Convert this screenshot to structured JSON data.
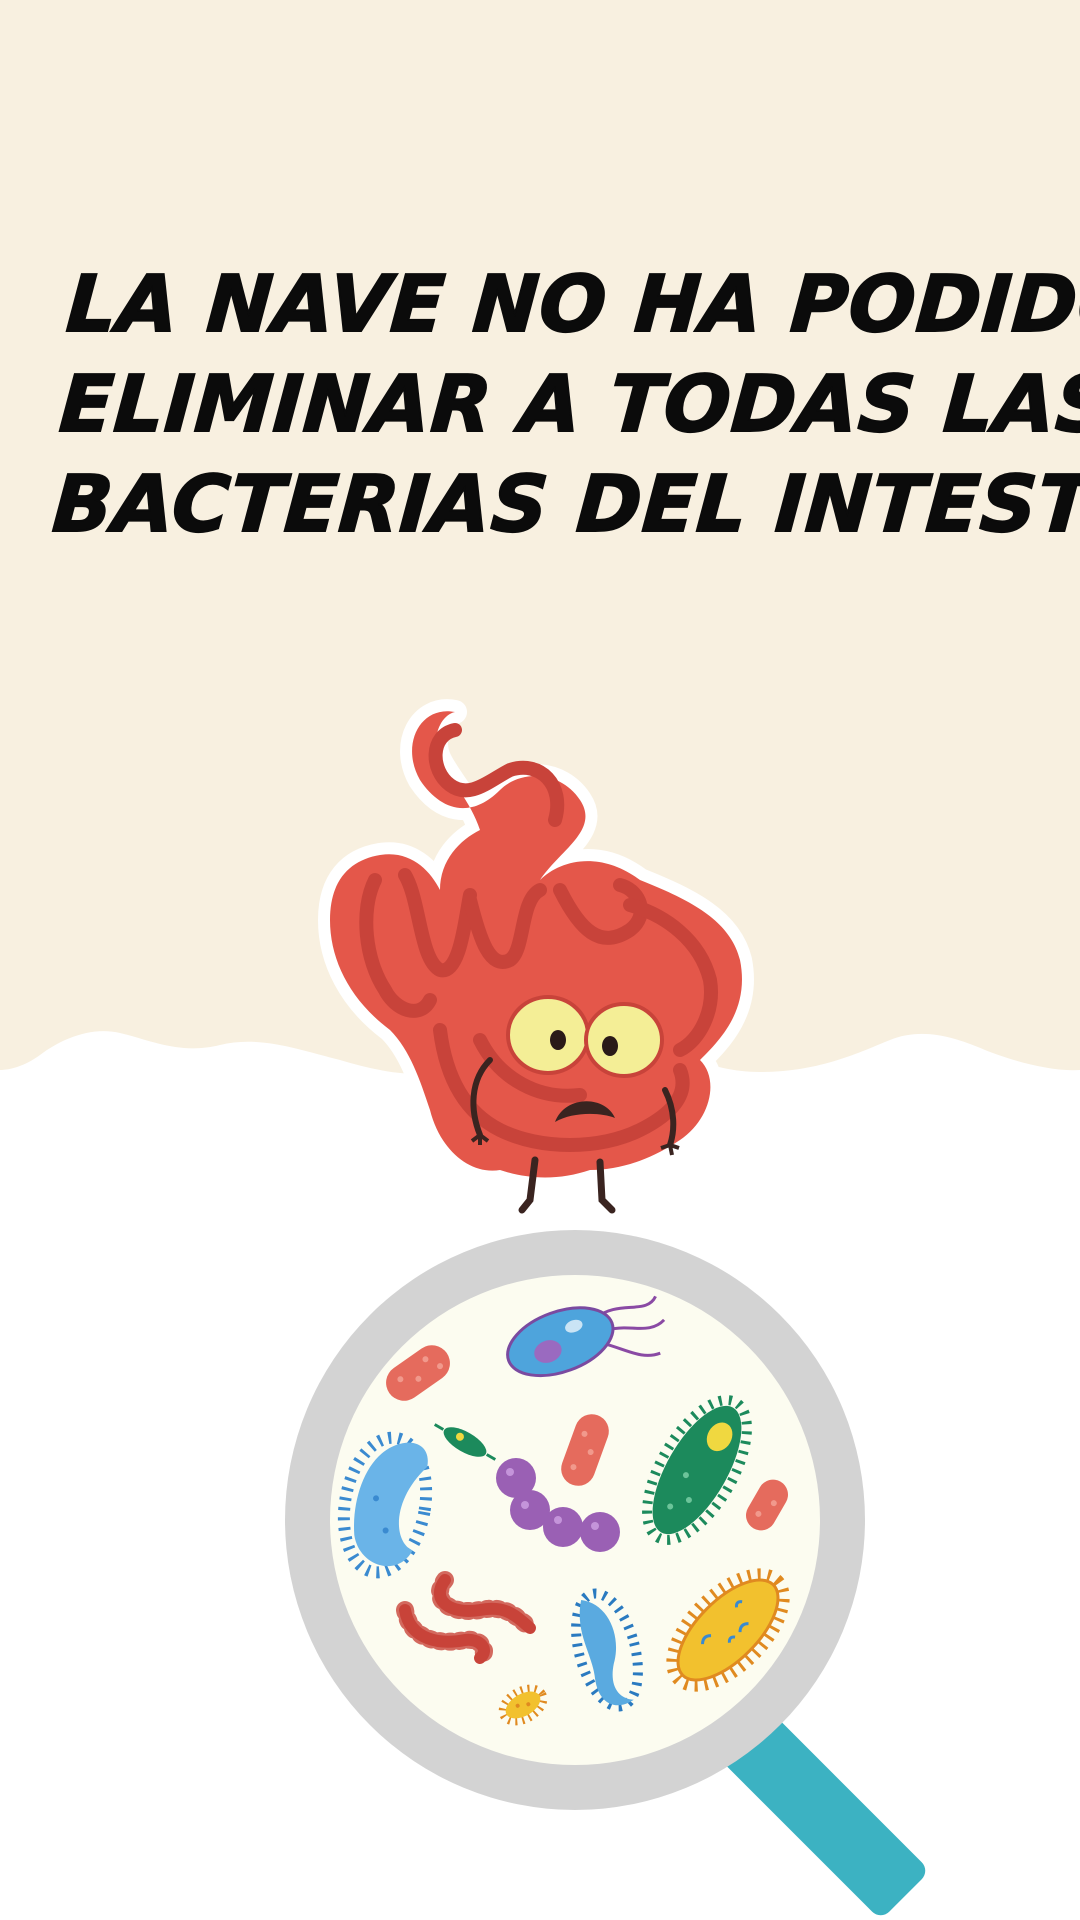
{
  "title": {
    "line1": "LA NAVE NO HA PODIDO",
    "line2": "ELIMINAR A TODAS LAS",
    "line3": "BACTERIAS DEL INTESTINO!"
  },
  "colors": {
    "cream_background": "#f8f0e0",
    "white_background": "#ffffff",
    "intestine_red": "#e4574a",
    "intestine_dark": "#c8433a",
    "magnifier_rim": "#d3d3d3",
    "magnifier_lens": "#fcfcf0",
    "magnifier_handle": "#3cb2c2"
  },
  "illustrations": {
    "intestine": "intestine-character-illustration",
    "magnifier": "magnifying-glass-illustration",
    "bacteria": [
      "red-capsule",
      "blue-paramecium",
      "green-bacillus",
      "purple-diplococcus-chain",
      "red-caterpillar",
      "blue-rod",
      "yellow-bacillus",
      "yellow-small"
    ]
  }
}
